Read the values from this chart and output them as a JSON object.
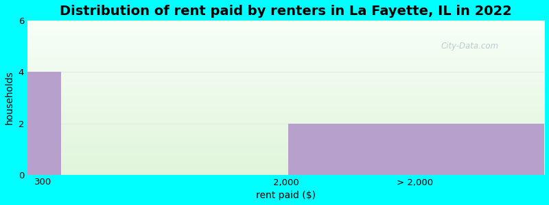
{
  "title": "Distribution of rent paid by renters in La Fayette, IL in 2022",
  "xlabel": "rent paid ($)",
  "ylabel": "households",
  "categories": [
    "300",
    "2,000",
    "> 2,000"
  ],
  "bar1_value": 4,
  "bar2_value": 2,
  "bar_color": "#b8a0cc",
  "ylim": [
    0,
    6
  ],
  "yticks": [
    0,
    2,
    4,
    6
  ],
  "background_color": "#00ffff",
  "grid_color": "#e0ece0",
  "title_fontsize": 14,
  "axis_label_fontsize": 10,
  "tick_fontsize": 9.5,
  "watermark": "City-Data.com"
}
